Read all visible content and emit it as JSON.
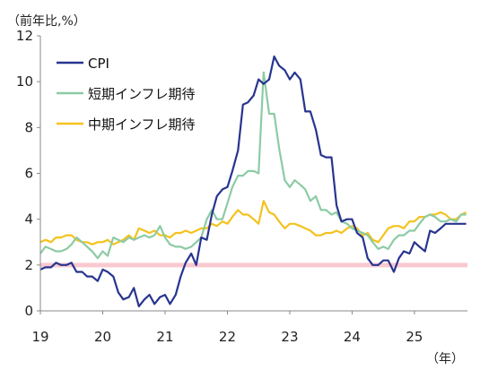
{
  "chart_data": {
    "type": "line",
    "ylabel": "（前年比,%）",
    "xlabel": "（年）",
    "xlim": [
      2019.0,
      2025.85
    ],
    "ylim": [
      0,
      12
    ],
    "yticks": [
      0,
      2,
      4,
      6,
      8,
      10,
      12
    ],
    "xticks": [
      {
        "label": "19",
        "value": 2019
      },
      {
        "label": "20",
        "value": 2020
      },
      {
        "label": "21",
        "value": 2021
      },
      {
        "label": "22",
        "value": 2022
      },
      {
        "label": "23",
        "value": 2023
      },
      {
        "label": "24",
        "value": 2024
      },
      {
        "label": "25",
        "value": 2025
      }
    ],
    "grid": false,
    "legend": "top-left",
    "reference_band": {
      "value": 2,
      "color": "#f9c9cf"
    },
    "series": [
      {
        "name": "CPI",
        "color": "#27358f",
        "points": [
          [
            2019.0,
            1.8
          ],
          [
            2019.08,
            1.9
          ],
          [
            2019.17,
            1.9
          ],
          [
            2019.25,
            2.1
          ],
          [
            2019.33,
            2.0
          ],
          [
            2019.42,
            2.0
          ],
          [
            2019.5,
            2.1
          ],
          [
            2019.58,
            1.7
          ],
          [
            2019.67,
            1.7
          ],
          [
            2019.75,
            1.5
          ],
          [
            2019.83,
            1.5
          ],
          [
            2019.92,
            1.3
          ],
          [
            2020.0,
            1.8
          ],
          [
            2020.08,
            1.7
          ],
          [
            2020.17,
            1.5
          ],
          [
            2020.25,
            0.8
          ],
          [
            2020.33,
            0.5
          ],
          [
            2020.42,
            0.6
          ],
          [
            2020.5,
            1.0
          ],
          [
            2020.58,
            0.2
          ],
          [
            2020.67,
            0.5
          ],
          [
            2020.75,
            0.7
          ],
          [
            2020.83,
            0.3
          ],
          [
            2020.92,
            0.6
          ],
          [
            2021.0,
            0.7
          ],
          [
            2021.08,
            0.3
          ],
          [
            2021.17,
            0.7
          ],
          [
            2021.25,
            1.5
          ],
          [
            2021.33,
            2.1
          ],
          [
            2021.42,
            2.5
          ],
          [
            2021.5,
            2.0
          ],
          [
            2021.58,
            3.2
          ],
          [
            2021.67,
            3.1
          ],
          [
            2021.75,
            4.2
          ],
          [
            2021.83,
            5.0
          ],
          [
            2021.92,
            5.3
          ],
          [
            2022.0,
            5.4
          ],
          [
            2022.08,
            6.1
          ],
          [
            2022.17,
            7.0
          ],
          [
            2022.25,
            9.0
          ],
          [
            2022.33,
            9.1
          ],
          [
            2022.42,
            9.4
          ],
          [
            2022.5,
            10.1
          ],
          [
            2022.58,
            9.9
          ],
          [
            2022.67,
            10.1
          ],
          [
            2022.75,
            11.1
          ],
          [
            2022.83,
            10.7
          ],
          [
            2022.92,
            10.5
          ],
          [
            2023.0,
            10.1
          ],
          [
            2023.08,
            10.4
          ],
          [
            2023.17,
            10.1
          ],
          [
            2023.25,
            8.7
          ],
          [
            2023.33,
            8.7
          ],
          [
            2023.42,
            7.9
          ],
          [
            2023.5,
            6.8
          ],
          [
            2023.58,
            6.7
          ],
          [
            2023.67,
            6.7
          ],
          [
            2023.75,
            4.6
          ],
          [
            2023.83,
            3.9
          ],
          [
            2023.92,
            4.0
          ],
          [
            2024.0,
            4.0
          ],
          [
            2024.08,
            3.4
          ],
          [
            2024.17,
            3.2
          ],
          [
            2024.25,
            2.3
          ],
          [
            2024.33,
            2.0
          ],
          [
            2024.42,
            2.0
          ],
          [
            2024.5,
            2.2
          ],
          [
            2024.58,
            2.2
          ],
          [
            2024.67,
            1.7
          ],
          [
            2024.75,
            2.3
          ],
          [
            2024.83,
            2.6
          ],
          [
            2024.92,
            2.5
          ],
          [
            2025.0,
            3.0
          ],
          [
            2025.08,
            2.8
          ],
          [
            2025.17,
            2.6
          ],
          [
            2025.25,
            3.5
          ],
          [
            2025.33,
            3.4
          ],
          [
            2025.42,
            3.6
          ],
          [
            2025.5,
            3.8
          ],
          [
            2025.58,
            3.8
          ],
          [
            2025.67,
            3.8
          ],
          [
            2025.75,
            3.8
          ],
          [
            2025.83,
            3.8
          ]
        ]
      },
      {
        "name": "短期インフレ期待",
        "color": "#8ccba5",
        "points": [
          [
            2019.0,
            2.5
          ],
          [
            2019.08,
            2.8
          ],
          [
            2019.17,
            2.7
          ],
          [
            2019.25,
            2.6
          ],
          [
            2019.33,
            2.6
          ],
          [
            2019.42,
            2.7
          ],
          [
            2019.5,
            2.9
          ],
          [
            2019.58,
            3.2
          ],
          [
            2019.67,
            3.0
          ],
          [
            2019.75,
            2.8
          ],
          [
            2019.83,
            2.6
          ],
          [
            2019.92,
            2.3
          ],
          [
            2020.0,
            2.6
          ],
          [
            2020.08,
            2.4
          ],
          [
            2020.17,
            3.2
          ],
          [
            2020.25,
            3.1
          ],
          [
            2020.33,
            3.0
          ],
          [
            2020.42,
            3.2
          ],
          [
            2020.5,
            3.1
          ],
          [
            2020.58,
            3.2
          ],
          [
            2020.67,
            3.3
          ],
          [
            2020.75,
            3.2
          ],
          [
            2020.83,
            3.3
          ],
          [
            2020.92,
            3.7
          ],
          [
            2021.0,
            3.2
          ],
          [
            2021.08,
            2.9
          ],
          [
            2021.17,
            2.8
          ],
          [
            2021.25,
            2.8
          ],
          [
            2021.33,
            2.7
          ],
          [
            2021.42,
            2.8
          ],
          [
            2021.5,
            3.0
          ],
          [
            2021.58,
            3.2
          ],
          [
            2021.67,
            4.0
          ],
          [
            2021.75,
            4.4
          ],
          [
            2021.83,
            4.0
          ],
          [
            2021.92,
            4.0
          ],
          [
            2022.0,
            4.7
          ],
          [
            2022.08,
            5.4
          ],
          [
            2022.17,
            5.9
          ],
          [
            2022.25,
            5.9
          ],
          [
            2022.33,
            6.1
          ],
          [
            2022.42,
            6.1
          ],
          [
            2022.5,
            6.0
          ],
          [
            2022.58,
            10.4
          ],
          [
            2022.67,
            8.6
          ],
          [
            2022.75,
            8.6
          ],
          [
            2022.83,
            7.1
          ],
          [
            2022.92,
            5.7
          ],
          [
            2023.0,
            5.4
          ],
          [
            2023.08,
            5.7
          ],
          [
            2023.17,
            5.5
          ],
          [
            2023.25,
            5.3
          ],
          [
            2023.33,
            4.8
          ],
          [
            2023.42,
            5.0
          ],
          [
            2023.5,
            4.4
          ],
          [
            2023.58,
            4.4
          ],
          [
            2023.67,
            4.2
          ],
          [
            2023.75,
            4.3
          ],
          [
            2023.83,
            3.9
          ],
          [
            2023.92,
            3.8
          ],
          [
            2024.0,
            3.6
          ],
          [
            2024.08,
            3.5
          ],
          [
            2024.17,
            3.4
          ],
          [
            2024.25,
            3.3
          ],
          [
            2024.33,
            3.0
          ],
          [
            2024.42,
            2.7
          ],
          [
            2024.5,
            2.8
          ],
          [
            2024.58,
            2.7
          ],
          [
            2024.67,
            3.1
          ],
          [
            2024.75,
            3.3
          ],
          [
            2024.83,
            3.3
          ],
          [
            2024.92,
            3.5
          ],
          [
            2025.0,
            3.5
          ],
          [
            2025.08,
            3.8
          ],
          [
            2025.17,
            4.1
          ],
          [
            2025.25,
            4.2
          ],
          [
            2025.33,
            4.1
          ],
          [
            2025.42,
            3.9
          ],
          [
            2025.5,
            3.9
          ],
          [
            2025.58,
            4.0
          ],
          [
            2025.67,
            3.9
          ],
          [
            2025.75,
            4.2
          ],
          [
            2025.83,
            4.2
          ]
        ]
      },
      {
        "name": "中期インフレ期待",
        "color": "#f4c21d",
        "points": [
          [
            2019.0,
            3.0
          ],
          [
            2019.08,
            3.1
          ],
          [
            2019.17,
            3.0
          ],
          [
            2019.25,
            3.2
          ],
          [
            2019.33,
            3.2
          ],
          [
            2019.42,
            3.3
          ],
          [
            2019.5,
            3.3
          ],
          [
            2019.58,
            3.1
          ],
          [
            2019.67,
            3.0
          ],
          [
            2019.75,
            3.0
          ],
          [
            2019.83,
            2.9
          ],
          [
            2019.92,
            3.0
          ],
          [
            2020.0,
            3.0
          ],
          [
            2020.08,
            3.1
          ],
          [
            2020.17,
            2.9
          ],
          [
            2020.25,
            3.0
          ],
          [
            2020.33,
            3.1
          ],
          [
            2020.42,
            3.3
          ],
          [
            2020.5,
            3.1
          ],
          [
            2020.58,
            3.6
          ],
          [
            2020.67,
            3.5
          ],
          [
            2020.75,
            3.4
          ],
          [
            2020.83,
            3.5
          ],
          [
            2020.92,
            3.3
          ],
          [
            2021.0,
            3.3
          ],
          [
            2021.08,
            3.2
          ],
          [
            2021.17,
            3.4
          ],
          [
            2021.25,
            3.4
          ],
          [
            2021.33,
            3.5
          ],
          [
            2021.42,
            3.4
          ],
          [
            2021.5,
            3.5
          ],
          [
            2021.58,
            3.6
          ],
          [
            2021.67,
            3.6
          ],
          [
            2021.75,
            3.8
          ],
          [
            2021.83,
            3.7
          ],
          [
            2021.92,
            3.9
          ],
          [
            2022.0,
            3.8
          ],
          [
            2022.08,
            4.1
          ],
          [
            2022.17,
            4.4
          ],
          [
            2022.25,
            4.2
          ],
          [
            2022.33,
            4.2
          ],
          [
            2022.42,
            4.0
          ],
          [
            2022.5,
            3.8
          ],
          [
            2022.58,
            4.8
          ],
          [
            2022.67,
            4.3
          ],
          [
            2022.75,
            4.2
          ],
          [
            2022.83,
            3.9
          ],
          [
            2022.92,
            3.6
          ],
          [
            2023.0,
            3.8
          ],
          [
            2023.08,
            3.8
          ],
          [
            2023.17,
            3.7
          ],
          [
            2023.25,
            3.6
          ],
          [
            2023.33,
            3.5
          ],
          [
            2023.42,
            3.3
          ],
          [
            2023.5,
            3.3
          ],
          [
            2023.58,
            3.4
          ],
          [
            2023.67,
            3.4
          ],
          [
            2023.75,
            3.5
          ],
          [
            2023.83,
            3.4
          ],
          [
            2023.92,
            3.6
          ],
          [
            2024.0,
            3.7
          ],
          [
            2024.08,
            3.6
          ],
          [
            2024.17,
            3.3
          ],
          [
            2024.25,
            3.4
          ],
          [
            2024.33,
            3.1
          ],
          [
            2024.42,
            3.0
          ],
          [
            2024.5,
            3.3
          ],
          [
            2024.58,
            3.6
          ],
          [
            2024.67,
            3.7
          ],
          [
            2024.75,
            3.7
          ],
          [
            2024.83,
            3.6
          ],
          [
            2024.92,
            3.9
          ],
          [
            2025.0,
            3.9
          ],
          [
            2025.08,
            4.1
          ],
          [
            2025.17,
            4.1
          ],
          [
            2025.25,
            4.2
          ],
          [
            2025.33,
            4.2
          ],
          [
            2025.42,
            4.3
          ],
          [
            2025.5,
            4.2
          ],
          [
            2025.58,
            4.0
          ],
          [
            2025.67,
            4.0
          ],
          [
            2025.75,
            4.2
          ],
          [
            2025.83,
            4.3
          ]
        ]
      }
    ]
  }
}
